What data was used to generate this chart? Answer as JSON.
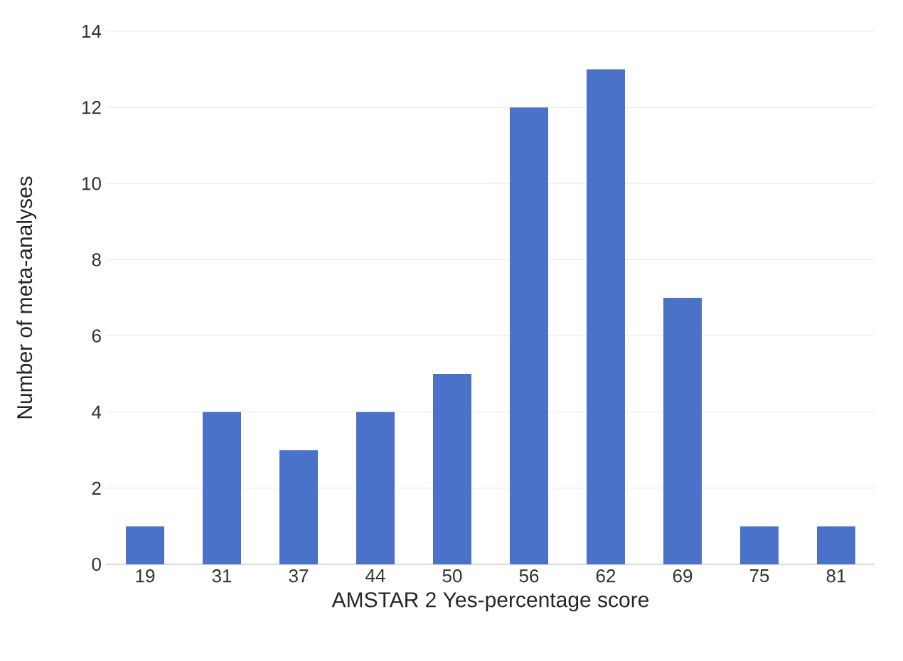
{
  "chart_data": {
    "type": "bar",
    "xlabel": "AMSTAR 2 Yes-percentage score",
    "ylabel": "Number of meta-analyses",
    "categories": [
      "19",
      "31",
      "37",
      "44",
      "50",
      "56",
      "62",
      "69",
      "75",
      "81"
    ],
    "values": [
      1,
      4,
      3,
      4,
      5,
      12,
      13,
      7,
      1,
      1
    ],
    "color": "#4a72c8",
    "ylim": [
      0,
      14
    ],
    "yticks": [
      0,
      2,
      4,
      6,
      8,
      10,
      12,
      14
    ],
    "grid": "y"
  }
}
